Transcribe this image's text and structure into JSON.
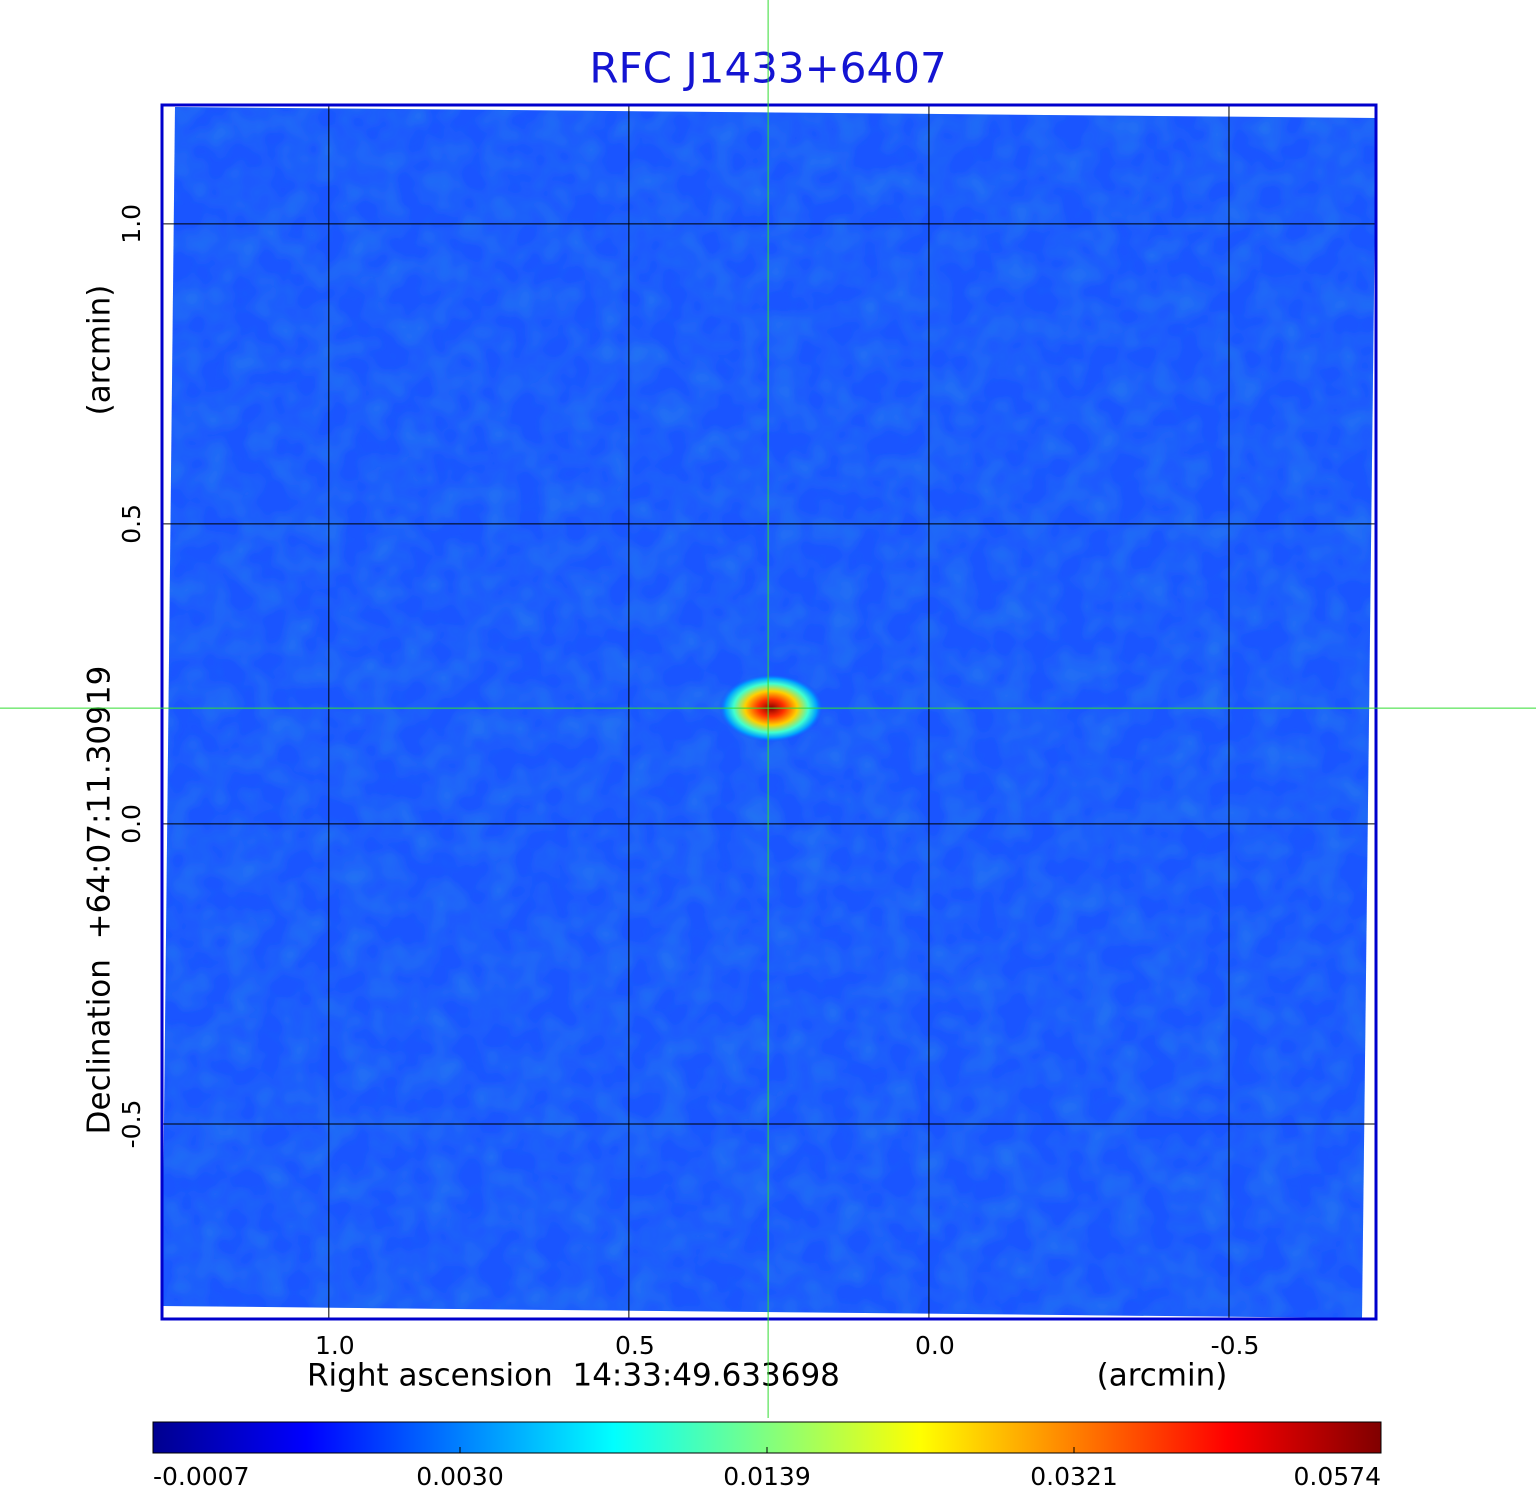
{
  "chart_data": {
    "type": "image",
    "title": "RFC J1433+6407",
    "x_label": "Right ascension  14:33:49.633698",
    "x_unit": "(arcmin)",
    "y_label": "Declination  +64:07:11.30919",
    "y_unit": "(arcmin)",
    "xlim": [
      1.278,
      -0.745
    ],
    "xticks": [
      {
        "value": 1,
        "label": "1.0"
      },
      {
        "value": 0.5,
        "label": "0.5"
      },
      {
        "value": 0,
        "label": "0.0"
      },
      {
        "value": -0.5,
        "label": "-0.5"
      }
    ],
    "ylim": [
      -0.825,
      1.198
    ],
    "yticks": [
      {
        "value": -0.5,
        "label": "-0.5"
      },
      {
        "value": 0,
        "label": "0.0"
      },
      {
        "value": 0.5,
        "label": "0.5"
      },
      {
        "value": 1,
        "label": "1.0"
      }
    ],
    "grid": true,
    "crosshair": {
      "x": 0.268,
      "y": 0.193
    },
    "colorbar": {
      "ticks": [
        -0.0007,
        {
          "value": 0.003,
          "label": "0.0030"
        },
        0.0139,
        0.0321,
        0.0574
      ],
      "colors": [
        "#00008f",
        "#0000ff",
        "#0080ff",
        "#00ffff",
        "#80ff80",
        "#ffff00",
        "#ff8000",
        "#ff0000",
        "#800000"
      ]
    }
  }
}
